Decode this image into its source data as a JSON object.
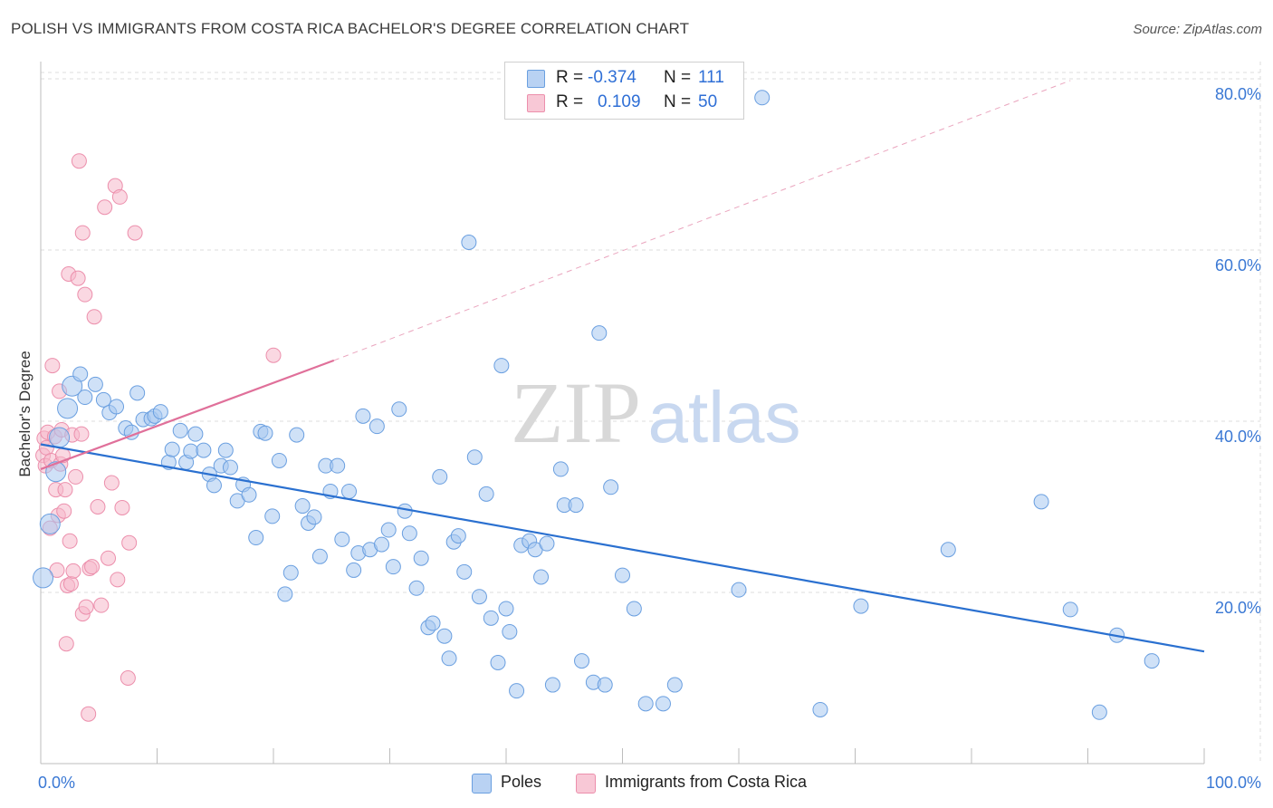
{
  "title": "POLISH VS IMMIGRANTS FROM COSTA RICA BACHELOR'S DEGREE CORRELATION CHART",
  "source": "Source: ZipAtlas.com",
  "watermark": {
    "zip": "ZIP",
    "atlas": "atlas"
  },
  "stats": {
    "poles": {
      "r_label": "R =",
      "r_value": "-0.374",
      "n_label": "N =",
      "n_value": "111"
    },
    "costa_rica": {
      "r_label": "R =",
      "r_value": "0.109",
      "n_label": "N =",
      "n_value": "50"
    }
  },
  "legend": {
    "poles": "Poles",
    "costa_rica": "Immigrants from Costa Rica"
  },
  "colors": {
    "poles_fill": "#a8c8f0",
    "poles_stroke": "#6a9fe0",
    "poles_line": "#2a70d0",
    "cr_fill": "#f6b8ca",
    "cr_stroke": "#ec8fac",
    "cr_line": "#e0709a",
    "tick_text": "#3a78d4",
    "grid": "#dddddd"
  },
  "chart_data": {
    "type": "scatter",
    "title": "POLISH VS IMMIGRANTS FROM COSTA RICA BACHELOR'S DEGREE CORRELATION CHART",
    "xlabel": "",
    "ylabel": "Bachelor's Degree",
    "xlim": [
      0,
      100
    ],
    "ylim": [
      0,
      82
    ],
    "x_tick_labels": [
      {
        "x": 0,
        "label": "0.0%"
      },
      {
        "x": 100,
        "label": "100.0%"
      }
    ],
    "y_tick_labels": [
      {
        "y": 20,
        "label": "20.0%"
      },
      {
        "y": 40,
        "label": "40.0%"
      },
      {
        "y": 60,
        "label": "60.0%"
      },
      {
        "y": 80,
        "label": "80.0%"
      }
    ],
    "series": [
      {
        "name": "Poles",
        "trend": {
          "x0": 0,
          "y0": 37.3,
          "x1": 100,
          "y1": 13.1
        },
        "points": [
          [
            0.2,
            21.7
          ],
          [
            0.8,
            28.0
          ],
          [
            1.3,
            34.1
          ],
          [
            1.6,
            38.1
          ],
          [
            2.3,
            41.5
          ],
          [
            2.7,
            44.1
          ],
          [
            3.4,
            45.5
          ],
          [
            3.8,
            42.8
          ],
          [
            4.7,
            44.3
          ],
          [
            5.4,
            42.5
          ],
          [
            5.9,
            41.0
          ],
          [
            6.5,
            41.7
          ],
          [
            7.3,
            39.2
          ],
          [
            7.8,
            38.7
          ],
          [
            8.3,
            43.3
          ],
          [
            8.8,
            40.2
          ],
          [
            9.5,
            40.3
          ],
          [
            9.8,
            40.6
          ],
          [
            10.3,
            41.1
          ],
          [
            11.0,
            35.2
          ],
          [
            11.3,
            36.7
          ],
          [
            12.0,
            38.9
          ],
          [
            12.5,
            35.2
          ],
          [
            12.9,
            36.5
          ],
          [
            13.3,
            38.5
          ],
          [
            14.0,
            36.6
          ],
          [
            14.5,
            33.8
          ],
          [
            14.9,
            32.5
          ],
          [
            15.5,
            34.8
          ],
          [
            15.9,
            36.6
          ],
          [
            16.3,
            34.6
          ],
          [
            16.9,
            30.7
          ],
          [
            17.4,
            32.6
          ],
          [
            17.9,
            31.4
          ],
          [
            18.5,
            26.4
          ],
          [
            18.9,
            38.8
          ],
          [
            19.3,
            38.6
          ],
          [
            19.9,
            28.9
          ],
          [
            20.5,
            35.4
          ],
          [
            21.0,
            19.8
          ],
          [
            21.5,
            22.3
          ],
          [
            22.0,
            38.4
          ],
          [
            22.5,
            30.1
          ],
          [
            23.0,
            28.1
          ],
          [
            23.5,
            28.8
          ],
          [
            24.0,
            24.2
          ],
          [
            24.5,
            34.8
          ],
          [
            24.9,
            31.8
          ],
          [
            25.5,
            34.8
          ],
          [
            25.9,
            26.2
          ],
          [
            26.5,
            31.8
          ],
          [
            26.9,
            22.6
          ],
          [
            27.3,
            24.6
          ],
          [
            27.7,
            40.6
          ],
          [
            28.3,
            25.0
          ],
          [
            28.9,
            39.4
          ],
          [
            29.3,
            25.6
          ],
          [
            29.9,
            27.3
          ],
          [
            30.3,
            23.0
          ],
          [
            30.8,
            41.4
          ],
          [
            31.3,
            29.5
          ],
          [
            31.7,
            26.9
          ],
          [
            32.3,
            20.5
          ],
          [
            32.7,
            24.0
          ],
          [
            33.3,
            15.9
          ],
          [
            33.7,
            16.4
          ],
          [
            34.3,
            33.5
          ],
          [
            34.7,
            14.9
          ],
          [
            35.1,
            12.3
          ],
          [
            35.5,
            25.9
          ],
          [
            35.9,
            26.6
          ],
          [
            36.4,
            22.4
          ],
          [
            36.8,
            60.9
          ],
          [
            37.3,
            35.8
          ],
          [
            37.7,
            19.5
          ],
          [
            38.3,
            31.5
          ],
          [
            38.7,
            17.0
          ],
          [
            39.3,
            11.8
          ],
          [
            39.6,
            46.5
          ],
          [
            40.0,
            18.1
          ],
          [
            40.3,
            15.4
          ],
          [
            40.9,
            8.5
          ],
          [
            41.3,
            25.5
          ],
          [
            42.0,
            26.0
          ],
          [
            42.5,
            25.0
          ],
          [
            43.0,
            21.8
          ],
          [
            43.5,
            25.7
          ],
          [
            44.0,
            9.2
          ],
          [
            44.7,
            34.4
          ],
          [
            45.0,
            30.2
          ],
          [
            46.0,
            30.2
          ],
          [
            46.5,
            12.0
          ],
          [
            47.5,
            9.5
          ],
          [
            48.0,
            50.3
          ],
          [
            48.5,
            9.2
          ],
          [
            49.0,
            32.3
          ],
          [
            50.0,
            22.0
          ],
          [
            51.0,
            18.1
          ],
          [
            52.0,
            7.0
          ],
          [
            53.5,
            7.0
          ],
          [
            54.5,
            9.2
          ],
          [
            60.0,
            20.3
          ],
          [
            62.0,
            77.8
          ],
          [
            67.0,
            6.3
          ],
          [
            70.5,
            18.4
          ],
          [
            78.0,
            25.0
          ],
          [
            86.0,
            30.6
          ],
          [
            88.5,
            18.0
          ],
          [
            91.0,
            6.0
          ],
          [
            92.5,
            15.0
          ],
          [
            95.5,
            12.0
          ]
        ]
      },
      {
        "name": "Immigrants from Costa Rica",
        "trend": {
          "x0": 0,
          "y0": 34.4,
          "x1": 25.2,
          "y1": 47.1
        },
        "trend_extension": {
          "x0": 25.2,
          "y0": 47.1,
          "x1": 88.5,
          "y1": 79.8
        },
        "points": [
          [
            0.2,
            36.0
          ],
          [
            0.3,
            38.0
          ],
          [
            0.4,
            34.8
          ],
          [
            0.5,
            36.9
          ],
          [
            0.6,
            38.7
          ],
          [
            0.8,
            27.5
          ],
          [
            0.9,
            35.4
          ],
          [
            1.0,
            46.5
          ],
          [
            1.2,
            38.2
          ],
          [
            1.3,
            32.0
          ],
          [
            1.4,
            22.6
          ],
          [
            1.5,
            29.0
          ],
          [
            1.6,
            43.5
          ],
          [
            1.7,
            35.0
          ],
          [
            1.8,
            39.0
          ],
          [
            1.9,
            36.0
          ],
          [
            2.0,
            29.5
          ],
          [
            2.1,
            32.0
          ],
          [
            2.2,
            14.0
          ],
          [
            2.3,
            20.8
          ],
          [
            2.4,
            57.2
          ],
          [
            2.5,
            26.0
          ],
          [
            2.6,
            21.0
          ],
          [
            2.7,
            38.4
          ],
          [
            2.8,
            22.5
          ],
          [
            3.0,
            33.5
          ],
          [
            3.2,
            56.7
          ],
          [
            3.3,
            70.4
          ],
          [
            3.5,
            38.5
          ],
          [
            3.6,
            62.0
          ],
          [
            3.6,
            17.5
          ],
          [
            3.8,
            54.8
          ],
          [
            3.9,
            18.3
          ],
          [
            4.1,
            5.8
          ],
          [
            4.2,
            22.8
          ],
          [
            4.4,
            23.0
          ],
          [
            4.6,
            52.2
          ],
          [
            4.9,
            30.0
          ],
          [
            5.2,
            18.5
          ],
          [
            5.5,
            65.0
          ],
          [
            5.8,
            24.0
          ],
          [
            6.1,
            32.8
          ],
          [
            6.4,
            67.5
          ],
          [
            6.6,
            21.5
          ],
          [
            6.8,
            66.2
          ],
          [
            7.0,
            29.9
          ],
          [
            7.5,
            10.0
          ],
          [
            7.6,
            25.8
          ],
          [
            8.1,
            62.0
          ],
          [
            20.0,
            47.7
          ]
        ]
      }
    ]
  }
}
